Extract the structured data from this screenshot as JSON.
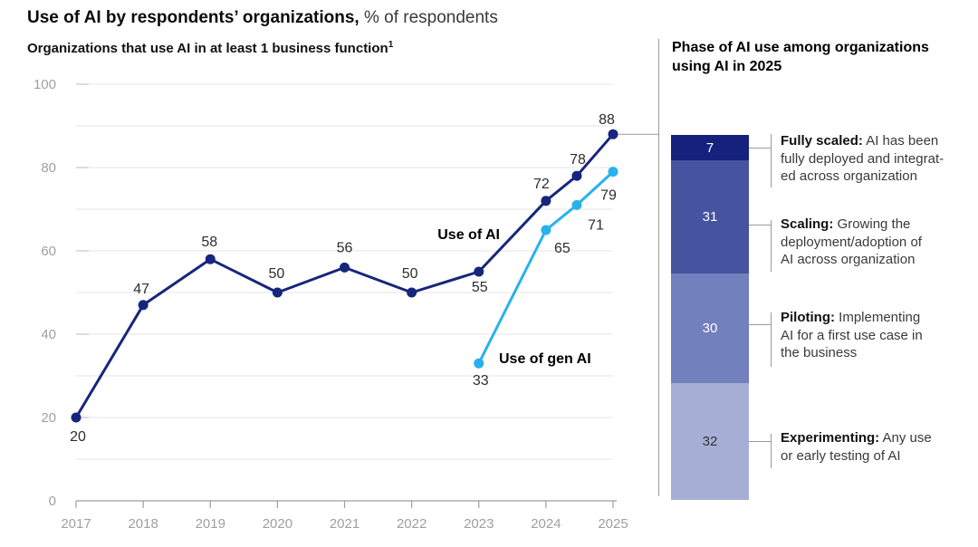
{
  "header": {
    "title_bold": "Use of AI by respondents’ organizations,",
    "title_suffix": "% of respondents"
  },
  "chart_data": {
    "type": "line",
    "subtitle": "Organizations that use AI in at least 1 business function",
    "footnote_marker": "1",
    "x_ticks": [
      2017,
      2018,
      2019,
      2020,
      2021,
      2022,
      2023,
      2024,
      2025
    ],
    "ylim": [
      0,
      100
    ],
    "grid_step": 10,
    "y_ticks_labeled": [
      0,
      20,
      40,
      60,
      80,
      100
    ],
    "series": [
      {
        "name": "Use of AI",
        "color": "#16267d",
        "x": [
          2017,
          2018,
          2019,
          2020,
          2021,
          2022,
          2023,
          2024,
          2024.46,
          2025
        ],
        "values": [
          20,
          47,
          58,
          50,
          56,
          50,
          55,
          72,
          78,
          88
        ],
        "label_offsets": [
          [
            2,
            26
          ],
          [
            -2,
            -13
          ],
          [
            -1,
            -14
          ],
          [
            -1,
            -16
          ],
          [
            0,
            -17
          ],
          [
            -2,
            -16
          ],
          [
            1,
            22
          ],
          [
            -5,
            -14
          ],
          [
            1,
            -13
          ],
          [
            -7,
            -11
          ]
        ]
      },
      {
        "name": "Use of gen AI",
        "color": "#29b1ec",
        "x": [
          2023,
          2024,
          2024.46,
          2025
        ],
        "values": [
          33,
          65,
          71,
          79
        ],
        "label_offsets": [
          [
            2,
            24
          ],
          [
            18,
            25
          ],
          [
            21,
            27
          ],
          [
            -5,
            31
          ]
        ]
      }
    ],
    "colors": {
      "grid": "#e4e4e4",
      "grid_stub": "#c6c6c6",
      "axis": "#9e9e9e",
      "axis_text": "#a0a0a0",
      "value_text": "#2d2d2d",
      "connector": "#9a9a9a"
    }
  },
  "phase_panel": {
    "title": "Phase of AI use among organizations using AI in 2025",
    "segments": [
      {
        "value": 7,
        "color": "#14227d",
        "text_color": "#ffffff",
        "lead": "Fully scaled:",
        "desc": " AI has been\nfully deployed and integrat-\ned across organization"
      },
      {
        "value": 31,
        "color": "#46539f",
        "text_color": "#ffffff",
        "lead": "Scaling:",
        "desc": " Growing the\ndeployment/adoption of\nAI across organization"
      },
      {
        "value": 30,
        "color": "#7280bd",
        "text_color": "#ffffff",
        "lead": "Piloting:",
        "desc": " Implementing\nAI for a first use case in\nthe business"
      },
      {
        "value": 32,
        "color": "#a7aed6",
        "text_color": "#333333",
        "lead": "Experimenting:",
        "desc": " Any use\nor early testing of AI"
      }
    ]
  }
}
